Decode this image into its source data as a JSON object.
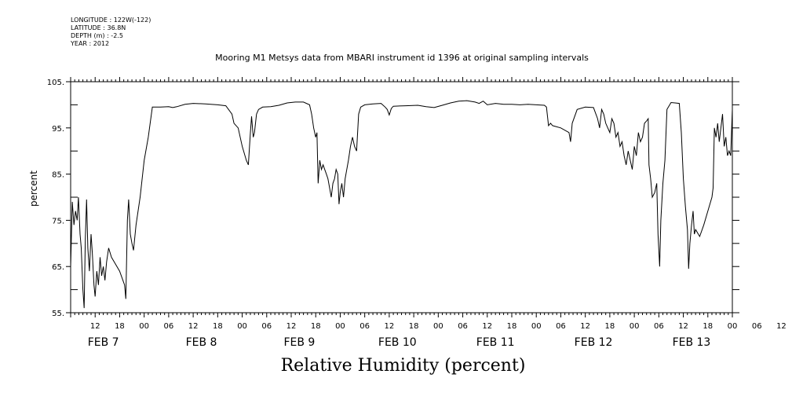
{
  "meta": {
    "longitude": "LONGITUDE : 122W(-122)",
    "latitude": "LATITUDE : 36.8N",
    "depth": "DEPTH (m) : -2.5",
    "year": "YEAR : 2012"
  },
  "chart_data": {
    "type": "line",
    "title": "Mooring M1 Metsys data from MBARI instrument id 1396 at original sampling intervals",
    "ylabel": "percent",
    "caption": "Relative Humidity (percent)",
    "ylim": [
      55,
      105
    ],
    "xlim_hours": [
      0,
      162
    ],
    "grid": false,
    "y_ticks": [
      "55.",
      "65.",
      "75.",
      "85.",
      "95.",
      "105."
    ],
    "x_tick_labels": [
      "12",
      "18",
      "00",
      "06",
      "12",
      "18",
      "00",
      "06",
      "12",
      "18",
      "00",
      "06",
      "12",
      "18",
      "00",
      "06",
      "12",
      "18",
      "00",
      "06",
      "12",
      "18",
      "00",
      "06",
      "12",
      "18",
      "00",
      "06",
      "12",
      "18",
      "00",
      "06",
      "12",
      "18",
      "00"
    ],
    "day_labels": [
      "FEB  7",
      "FEB  8",
      "FEB  9",
      "FEB 10",
      "FEB 11",
      "FEB 12",
      "FEB 13"
    ],
    "x_note": "x values are hours after 2012-02-07 06:00 UTC",
    "series": [
      {
        "name": "Relative Humidity",
        "points": [
          [
            0,
            65
          ],
          [
            0.4,
            79
          ],
          [
            0.8,
            74
          ],
          [
            1.2,
            77
          ],
          [
            1.6,
            75
          ],
          [
            1.9,
            80
          ],
          [
            2.3,
            72
          ],
          [
            2.6,
            69
          ],
          [
            3,
            60
          ],
          [
            3.3,
            56
          ],
          [
            3.6,
            71
          ],
          [
            3.9,
            79.5
          ],
          [
            4.2,
            69
          ],
          [
            4.6,
            64
          ],
          [
            5,
            72
          ],
          [
            5.3,
            68
          ],
          [
            5.7,
            61
          ],
          [
            6,
            58.5
          ],
          [
            6.4,
            64
          ],
          [
            6.8,
            61
          ],
          [
            7.2,
            67
          ],
          [
            7.6,
            63
          ],
          [
            8,
            65
          ],
          [
            8.4,
            62
          ],
          [
            8.8,
            66
          ],
          [
            9.3,
            69
          ],
          [
            10,
            67
          ],
          [
            11,
            65.5
          ],
          [
            12,
            64
          ],
          [
            12.8,
            62
          ],
          [
            13.2,
            61
          ],
          [
            13.5,
            58
          ],
          [
            13.9,
            75
          ],
          [
            14.2,
            79.5
          ],
          [
            14.6,
            72
          ],
          [
            15,
            70
          ],
          [
            15.4,
            68.5
          ],
          [
            16,
            74
          ],
          [
            17,
            80
          ],
          [
            18,
            88
          ],
          [
            19,
            93
          ],
          [
            20,
            99.5
          ],
          [
            22,
            99.5
          ],
          [
            24,
            99.6
          ],
          [
            25,
            99.4
          ],
          [
            26,
            99.6
          ],
          [
            28,
            100.1
          ],
          [
            30,
            100.3
          ],
          [
            33,
            100.2
          ],
          [
            36,
            100
          ],
          [
            38,
            99.8
          ],
          [
            39.5,
            98
          ],
          [
            40,
            96
          ],
          [
            41,
            95
          ],
          [
            42,
            91
          ],
          [
            43,
            88
          ],
          [
            43.5,
            87
          ],
          [
            44,
            94
          ],
          [
            44.3,
            97.5
          ],
          [
            44.7,
            93
          ],
          [
            45,
            94
          ],
          [
            45.5,
            98
          ],
          [
            46,
            99
          ],
          [
            47,
            99.5
          ],
          [
            49,
            99.6
          ],
          [
            51,
            99.9
          ],
          [
            53,
            100.4
          ],
          [
            55,
            100.6
          ],
          [
            57,
            100.6
          ],
          [
            58.5,
            100
          ],
          [
            59,
            98
          ],
          [
            59.5,
            95
          ],
          [
            60,
            93
          ],
          [
            60.3,
            94
          ],
          [
            60.6,
            83
          ],
          [
            61,
            88
          ],
          [
            61.4,
            86
          ],
          [
            61.8,
            87
          ],
          [
            62.2,
            86
          ],
          [
            62.6,
            85
          ],
          [
            63,
            84
          ],
          [
            63.4,
            82
          ],
          [
            63.8,
            80
          ],
          [
            64.2,
            83
          ],
          [
            64.6,
            84
          ],
          [
            65,
            86
          ],
          [
            65.4,
            85
          ],
          [
            65.7,
            78.5
          ],
          [
            66,
            81
          ],
          [
            66.4,
            83
          ],
          [
            66.8,
            80
          ],
          [
            67.2,
            84
          ],
          [
            67.6,
            86
          ],
          [
            68,
            88
          ],
          [
            68.5,
            91
          ],
          [
            69,
            93
          ],
          [
            69.5,
            91
          ],
          [
            70,
            90
          ],
          [
            70.5,
            98
          ],
          [
            71,
            99.5
          ],
          [
            72,
            100
          ],
          [
            74,
            100.2
          ],
          [
            76,
            100.3
          ],
          [
            77,
            99.5
          ],
          [
            77.5,
            99
          ],
          [
            78,
            97.8
          ],
          [
            78.5,
            99.2
          ],
          [
            79,
            99.7
          ],
          [
            82,
            99.8
          ],
          [
            85,
            99.9
          ],
          [
            87,
            99.6
          ],
          [
            89,
            99.4
          ],
          [
            91,
            99.9
          ],
          [
            93,
            100.4
          ],
          [
            95,
            100.8
          ],
          [
            97,
            100.9
          ],
          [
            99,
            100.6
          ],
          [
            100,
            100.3
          ],
          [
            101,
            100.8
          ],
          [
            102,
            100
          ],
          [
            104,
            100.3
          ],
          [
            106,
            100.1
          ],
          [
            108,
            100.1
          ],
          [
            110,
            100
          ],
          [
            112,
            100.1
          ],
          [
            114,
            100
          ],
          [
            116,
            99.9
          ],
          [
            116.5,
            99.5
          ],
          [
            117,
            95.5
          ],
          [
            117.5,
            96
          ],
          [
            118,
            95.5
          ],
          [
            120,
            95
          ],
          [
            122,
            94
          ],
          [
            122.4,
            92
          ],
          [
            122.8,
            96
          ],
          [
            124,
            99
          ],
          [
            126,
            99.5
          ],
          [
            128,
            99.4
          ],
          [
            129,
            97
          ],
          [
            129.5,
            95
          ],
          [
            130,
            99
          ],
          [
            130.5,
            98
          ],
          [
            131,
            96
          ],
          [
            131.5,
            95
          ],
          [
            132,
            94
          ],
          [
            132.5,
            97
          ],
          [
            133,
            96
          ],
          [
            133.5,
            93
          ],
          [
            134,
            94
          ],
          [
            134.5,
            91
          ],
          [
            135,
            92
          ],
          [
            135.5,
            89
          ],
          [
            136,
            87
          ],
          [
            136.5,
            90
          ],
          [
            137,
            88
          ],
          [
            137.5,
            86
          ],
          [
            138,
            91
          ],
          [
            138.5,
            89
          ],
          [
            139,
            94
          ],
          [
            139.5,
            92
          ],
          [
            140,
            93
          ],
          [
            140.5,
            96
          ],
          [
            141,
            96.5
          ],
          [
            141.4,
            97
          ],
          [
            141.6,
            87
          ],
          [
            142,
            84
          ],
          [
            142.4,
            80
          ],
          [
            143,
            81
          ],
          [
            143.5,
            83
          ],
          [
            143.8,
            72
          ],
          [
            144.2,
            65
          ],
          [
            144.5,
            75
          ],
          [
            145,
            83
          ],
          [
            145.5,
            88
          ],
          [
            146,
            99
          ],
          [
            147,
            100.5
          ],
          [
            148,
            100.4
          ],
          [
            149,
            100.3
          ],
          [
            149.5,
            94
          ],
          [
            150,
            84
          ],
          [
            150.5,
            78
          ],
          [
            151,
            73
          ],
          [
            151.3,
            64.5
          ],
          [
            151.6,
            70
          ],
          [
            152,
            74
          ],
          [
            152.4,
            77
          ],
          [
            152.7,
            72
          ],
          [
            153,
            73
          ],
          [
            154,
            71.5
          ],
          [
            155,
            74
          ],
          [
            156,
            77
          ],
          [
            157,
            80
          ],
          [
            157.3,
            82
          ],
          [
            157.6,
            95
          ],
          [
            158,
            93
          ],
          [
            158.4,
            96
          ],
          [
            158.8,
            92
          ],
          [
            159.2,
            95
          ],
          [
            159.6,
            98
          ],
          [
            160,
            91
          ],
          [
            160.4,
            93
          ],
          [
            160.8,
            89
          ],
          [
            161.2,
            90
          ],
          [
            161.6,
            89
          ],
          [
            162,
            99
          ]
        ]
      }
    ]
  }
}
